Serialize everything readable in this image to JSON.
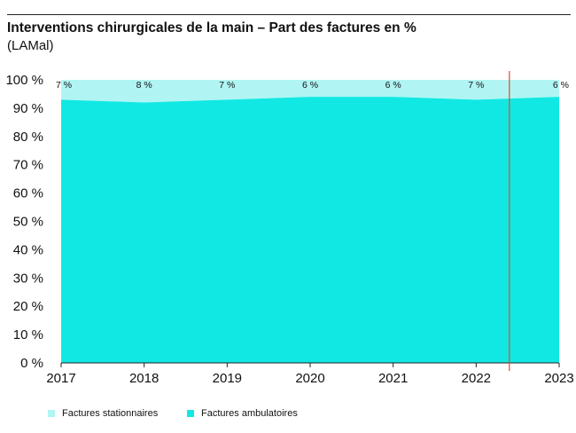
{
  "title": "Interventions chirurgicales de la main – Part des factures en %",
  "subtitle": "(LAMal)",
  "colors": {
    "stationnaires": "#b0f5f3",
    "ambulatoires": "#12e8e3",
    "marker": "#e04a2a",
    "axis": "#222222"
  },
  "legend": {
    "stationnaires": "Factures stationnaires",
    "ambulatoires": "Factures ambulatoires"
  },
  "chart_data": {
    "type": "area",
    "stacked": true,
    "x": [
      "2017",
      "2018",
      "2019",
      "2020",
      "2021",
      "2022",
      "2023"
    ],
    "ylim": [
      0,
      100
    ],
    "yticks": [
      0,
      10,
      20,
      30,
      40,
      50,
      60,
      70,
      80,
      90,
      100
    ],
    "ytick_suffix": " %",
    "series": [
      {
        "name": "Factures ambulatoires",
        "values": [
          93,
          92,
          93,
          94,
          94,
          93,
          94
        ]
      },
      {
        "name": "Factures stationnaires",
        "values": [
          7,
          8,
          7,
          6,
          6,
          7,
          6
        ]
      }
    ],
    "data_labels": [
      "7 %",
      "8 %",
      "7 %",
      "6 %",
      "6 %",
      "7 %",
      "6 %"
    ],
    "vertical_marker_x": 2022.4
  }
}
